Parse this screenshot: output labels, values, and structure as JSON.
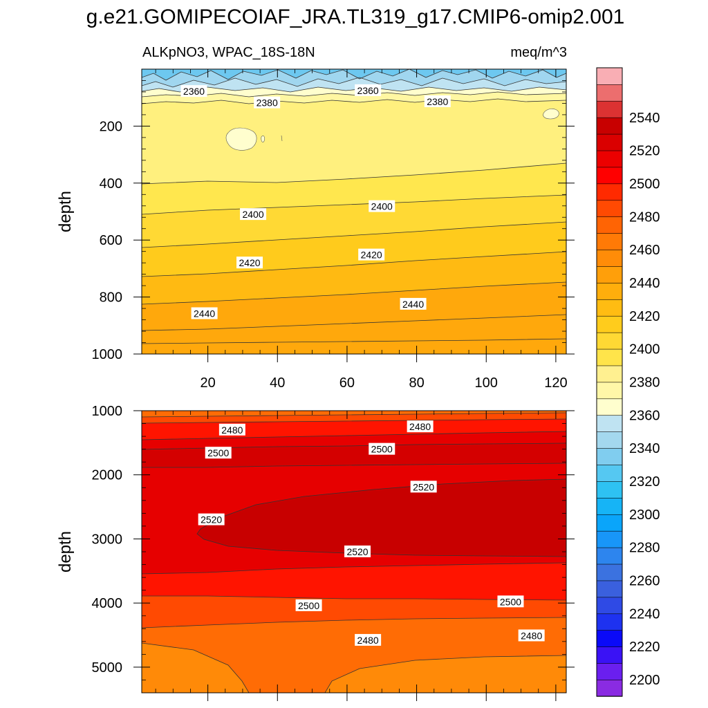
{
  "chart_data": {
    "type": "contour",
    "title": "g.e21.GOMIPECOIAF_JRA.TL319_g17.CMIP6-omip2.001",
    "subtitle_left": "ALKpNO3, WPAC_18S-18N",
    "subtitle_right": "meq/m^3",
    "panels": [
      {
        "name": "upper",
        "ylabel": "depth",
        "xlim": [
          1,
          123
        ],
        "ylim": [
          1000,
          0
        ],
        "x_ticks": [
          20,
          40,
          60,
          80,
          100,
          120
        ],
        "x_tick_labels": [
          "20",
          "40",
          "60",
          "80",
          "100",
          "120"
        ],
        "y_ticks": [
          200,
          400,
          600,
          800,
          1000
        ],
        "y_tick_labels": [
          "200",
          "400",
          "600",
          "800",
          "1000"
        ],
        "contour_labels": [
          {
            "text": "2360",
            "x": 16,
            "y": 78
          },
          {
            "text": "2360",
            "x": 66,
            "y": 75
          },
          {
            "text": "2380",
            "x": 37,
            "y": 118
          },
          {
            "text": "2380",
            "x": 86,
            "y": 114
          },
          {
            "text": "2400",
            "x": 33,
            "y": 510
          },
          {
            "text": "2400",
            "x": 70,
            "y": 482
          },
          {
            "text": "2420",
            "x": 32,
            "y": 680
          },
          {
            "text": "2420",
            "x": 67,
            "y": 652
          },
          {
            "text": "2440",
            "x": 19,
            "y": 858
          },
          {
            "text": "2440",
            "x": 79,
            "y": 825
          }
        ]
      },
      {
        "name": "lower",
        "ylabel": "depth",
        "xlim": [
          1,
          123
        ],
        "ylim": [
          5400,
          1000
        ],
        "y_ticks": [
          1000,
          2000,
          3000,
          4000,
          5000
        ],
        "y_tick_labels": [
          "1000",
          "2000",
          "3000",
          "4000",
          "5000"
        ],
        "contour_labels": [
          {
            "text": "2480",
            "x": 27,
            "y": 1300
          },
          {
            "text": "2480",
            "x": 81,
            "y": 1250
          },
          {
            "text": "2500",
            "x": 23,
            "y": 1660
          },
          {
            "text": "2500",
            "x": 70,
            "y": 1600
          },
          {
            "text": "2520",
            "x": 82,
            "y": 2190
          },
          {
            "text": "2520",
            "x": 21,
            "y": 2700
          },
          {
            "text": "2520",
            "x": 63,
            "y": 3200
          },
          {
            "text": "2500",
            "x": 49,
            "y": 4040
          },
          {
            "text": "2500",
            "x": 107,
            "y": 3980
          },
          {
            "text": "2480",
            "x": 66,
            "y": 4580
          },
          {
            "text": "2480",
            "x": 113,
            "y": 4510
          }
        ]
      }
    ],
    "colorbar": {
      "levels": [
        2200,
        2210,
        2220,
        2230,
        2240,
        2250,
        2260,
        2270,
        2280,
        2290,
        2300,
        2310,
        2320,
        2330,
        2340,
        2350,
        2360,
        2370,
        2380,
        2390,
        2400,
        2410,
        2420,
        2430,
        2440,
        2450,
        2460,
        2470,
        2480,
        2490,
        2500,
        2510,
        2520,
        2530,
        2540,
        2550
      ],
      "labels": [
        "2200",
        "2220",
        "2240",
        "2260",
        "2280",
        "2300",
        "2320",
        "2340",
        "2360",
        "2380",
        "2400",
        "2420",
        "2440",
        "2460",
        "2480",
        "2500",
        "2520",
        "2540"
      ],
      "colors": [
        "#8a2be2",
        "#6a1fef",
        "#3a12f5",
        "#0a0af8",
        "#1e32f0",
        "#2f4ae5",
        "#3a60de",
        "#3b72e0",
        "#2d85ee",
        "#1896f8",
        "#0aa5fa",
        "#16b4f6",
        "#2ec2f2",
        "#55c8f2",
        "#80cdef",
        "#a4d8ee",
        "#bfe3f2",
        "#fffece",
        "#fff7a8",
        "#fff090",
        "#ffe44a",
        "#ffd934",
        "#ffcc1c",
        "#ffbc12",
        "#ffae0c",
        "#ff9f0a",
        "#ff8c08",
        "#ff7a06",
        "#ff6404",
        "#ff4a02",
        "#ff2a00",
        "#ff0000",
        "#ec0000",
        "#da0000",
        "#c80000",
        "#dc3232",
        "#ec6e6e",
        "#f9aeb4"
      ]
    }
  }
}
